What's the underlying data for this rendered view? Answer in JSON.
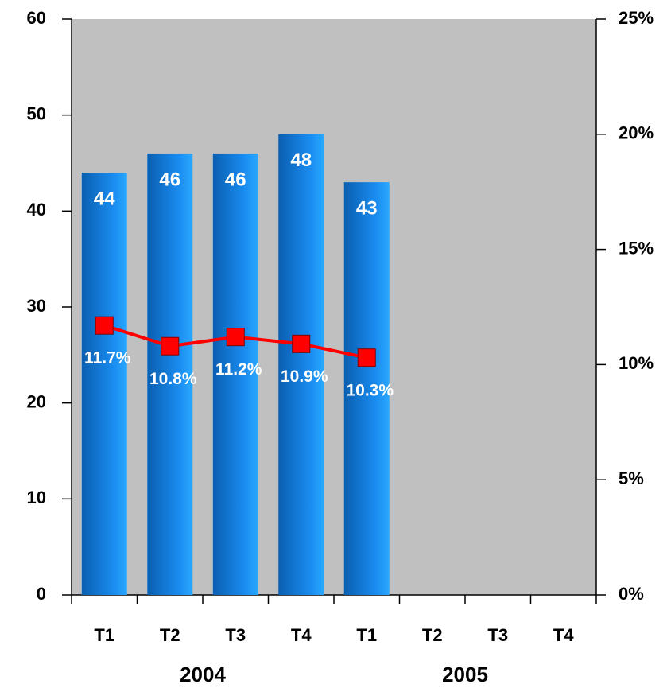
{
  "chart_data": {
    "type": "bar",
    "categories": [
      "T1",
      "T2",
      "T3",
      "T4",
      "T1",
      "T2",
      "T3",
      "T4"
    ],
    "groups": [
      {
        "label": "2004",
        "count": 4
      },
      {
        "label": "2005",
        "count": 4
      }
    ],
    "series": [
      {
        "type": "bar",
        "color": "#1a8cf0",
        "values": [
          44,
          46,
          46,
          48,
          43,
          null,
          null,
          null
        ]
      },
      {
        "type": "line",
        "axis": "y2",
        "color": "#ff0000",
        "values": [
          11.7,
          10.8,
          11.2,
          10.9,
          10.3,
          null,
          null,
          null
        ],
        "value_labels": [
          "11.7%",
          "10.8%",
          "11.2%",
          "10.9%",
          "10.3%",
          null,
          null,
          null
        ]
      }
    ],
    "ylim": [
      0,
      60
    ],
    "yticks": [
      0,
      10,
      20,
      30,
      40,
      50,
      60
    ],
    "y2lim": [
      0,
      25
    ],
    "y2ticks": [
      {
        "value": 0,
        "label": "0%"
      },
      {
        "value": 5,
        "label": "5%"
      },
      {
        "value": 10,
        "label": "10%"
      },
      {
        "value": 15,
        "label": "15%"
      },
      {
        "value": 20,
        "label": "20%"
      },
      {
        "value": 25,
        "label": "25%"
      }
    ],
    "plot_background": "#c0c0c0"
  }
}
